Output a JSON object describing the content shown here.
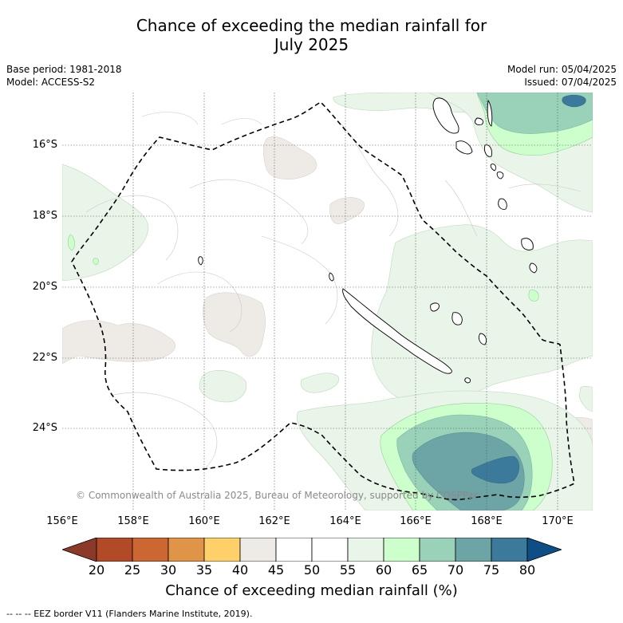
{
  "title": {
    "line1": "Chance of exceeding the median rainfall for",
    "line2": "July 2025"
  },
  "meta_left": {
    "base_period": "Base period: 1981-2018",
    "model": "Model: ACCESS-S2"
  },
  "meta_right": {
    "model_run": "Model run: 05/04/2025",
    "issued": "Issued: 07/04/2025"
  },
  "map": {
    "lat_labels": [
      "16°S",
      "18°S",
      "20°S",
      "22°S",
      "24°S"
    ],
    "lon_labels": [
      "156°E",
      "158°E",
      "160°E",
      "162°E",
      "164°E",
      "166°E",
      "168°E",
      "170°E"
    ],
    "copyright": "© Commonwealth of Australia 2025, Bureau of Meteorology, supported by COSPPac"
  },
  "colorbar": {
    "labels": [
      "20",
      "25",
      "30",
      "35",
      "40",
      "45",
      "50",
      "55",
      "60",
      "65",
      "70",
      "75",
      "80"
    ],
    "colors": [
      "#8b3a2a",
      "#b34a27",
      "#cc6633",
      "#e09448",
      "#fdd06a",
      "#eeebe7",
      "#ffffff",
      "#ffffff",
      "#e9f5e9",
      "#ccffcc",
      "#99d2b8",
      "#6da5a6",
      "#3c7a9b",
      "#0d4e86"
    ],
    "title": "Chance of exceeding median rainfall (%)"
  },
  "legend_note": "-- -- -- EEZ border V11 (Flanders Marine Institute, 2019)."
}
